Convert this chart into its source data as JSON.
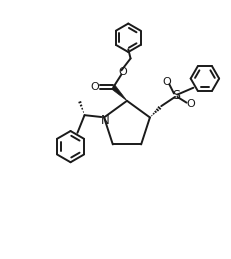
{
  "background_color": "#ffffff",
  "line_color": "#1a1a1a",
  "line_width": 1.4,
  "figsize": [
    2.31,
    2.59
  ],
  "dpi": 100,
  "xlim": [
    0,
    10
  ],
  "ylim": [
    0,
    11.2
  ]
}
